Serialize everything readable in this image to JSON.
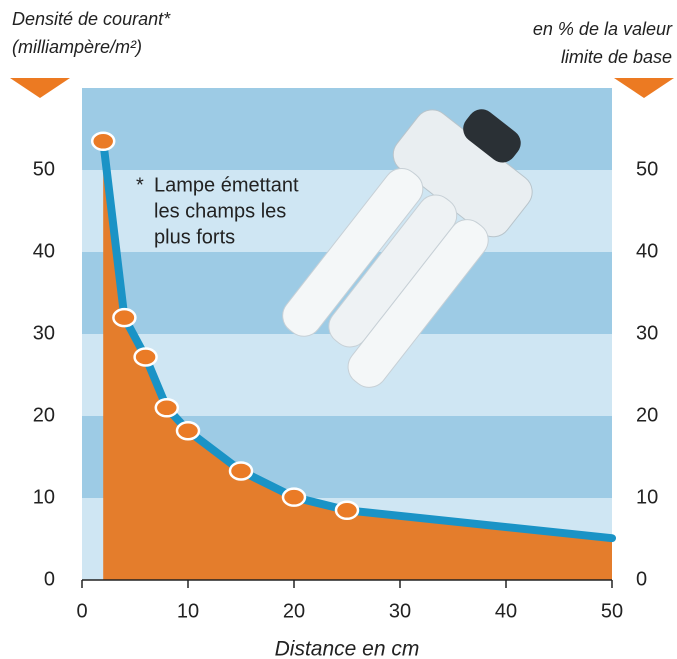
{
  "chart_data": {
    "type": "area-line",
    "ylabel": [
      "Densité de courant*",
      "(milliampère/m²)"
    ],
    "y2label": [
      "en % de la valeur",
      "limite de base"
    ],
    "xlabel": "Distance en cm",
    "annotation": [
      "*",
      "Lampe émettant",
      "les champs les",
      "plus forts"
    ],
    "x": [
      2,
      4,
      6,
      8,
      10,
      15,
      20,
      25,
      50
    ],
    "series": [
      {
        "color": "#1a93c6",
        "fill": "#e47d2c",
        "values": [
          53.5,
          32,
          27.2,
          21,
          18.2,
          13.3,
          10.1,
          8.5,
          5.1
        ]
      }
    ],
    "xlim": [
      0,
      50
    ],
    "xticks": [
      0,
      10,
      20,
      30,
      40,
      50
    ],
    "ylim": [
      0,
      60
    ],
    "yticks": [
      0,
      10,
      20,
      30,
      40,
      50
    ],
    "y2lim": [
      0,
      60
    ],
    "y2ticks": [
      0,
      10,
      20,
      30,
      40,
      50
    ],
    "grid": "bands"
  }
}
